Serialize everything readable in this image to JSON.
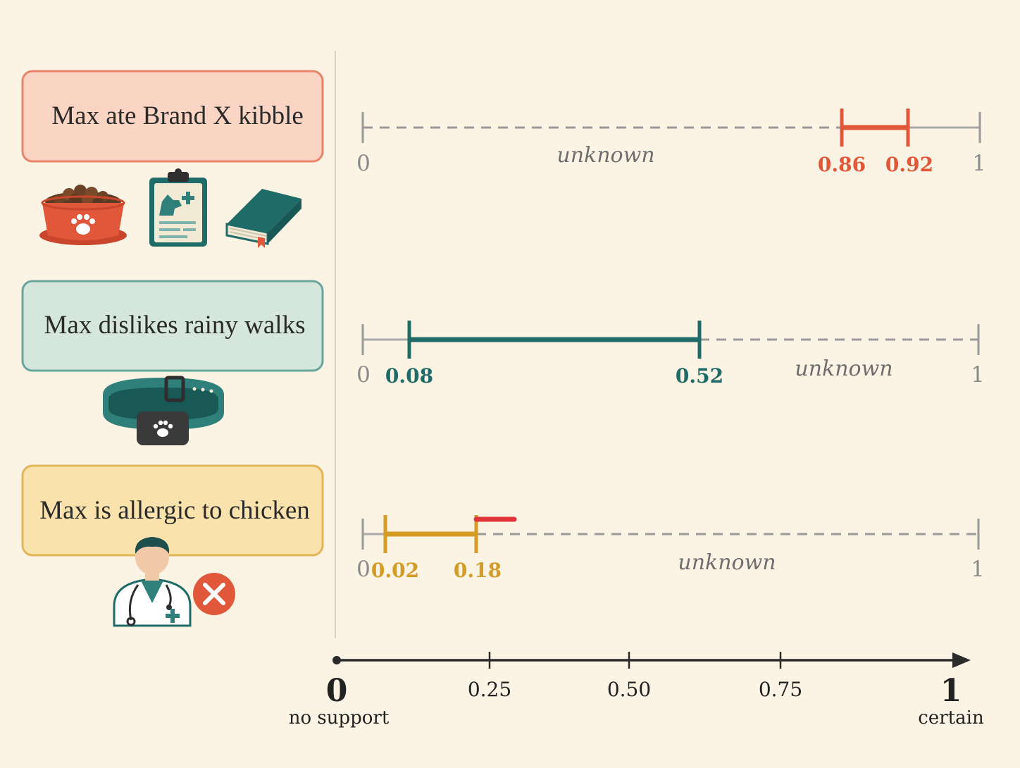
{
  "colors": {
    "background": "#fbf3e4",
    "claim1_fill": "#fbd5c3",
    "claim1_border": "#e8846a",
    "claim1_accent": "#e0573a",
    "claim2_fill": "#d5e6dd",
    "claim2_border": "#6aa59c",
    "claim2_accent": "#1f6b67",
    "claim3_fill": "#f9e2ab",
    "claim3_border": "#e2b559",
    "claim3_accent": "#d49b25",
    "conflict": "#e0343a",
    "dashed_line": "#9a9a9a",
    "text_gray": "#777777",
    "axis": "#2b2b2b"
  },
  "claims": [
    {
      "text": "Max ate Brand X kibble",
      "lower": 0.86,
      "upper": 0.92,
      "lower_label": "0.86",
      "upper_label": "0.92",
      "unknown_label": "unknown",
      "scale_min_label": "0",
      "scale_max_label": "1",
      "icons": [
        "dog-food-bowl-icon",
        "vet-clipboard-icon",
        "book-icon"
      ]
    },
    {
      "text": "Max dislikes rainy walks",
      "lower": 0.08,
      "upper": 0.52,
      "lower_label": "0.08",
      "upper_label": "0.52",
      "unknown_label": "unknown",
      "scale_min_label": "0",
      "scale_max_label": "1",
      "icons": [
        "pet-collar-icon"
      ]
    },
    {
      "text": "Max is allergic to chicken",
      "lower": 0.02,
      "upper": 0.18,
      "lower_label": "0.02",
      "upper_label": "0.18",
      "unknown_label": "unknown",
      "scale_min_label": "0",
      "scale_max_label": "1",
      "conflict_end": 0.245,
      "icons": [
        "veterinarian-icon",
        "reject-x-icon"
      ]
    }
  ],
  "axis": {
    "ticks": [
      {
        "value": 0,
        "label": "0"
      },
      {
        "value": 0.25,
        "label": "0.25"
      },
      {
        "value": 0.5,
        "label": "0.50"
      },
      {
        "value": 0.75,
        "label": "0.75"
      },
      {
        "value": 1,
        "label": "1"
      }
    ],
    "min_caption": "no support",
    "max_caption": "certain"
  }
}
